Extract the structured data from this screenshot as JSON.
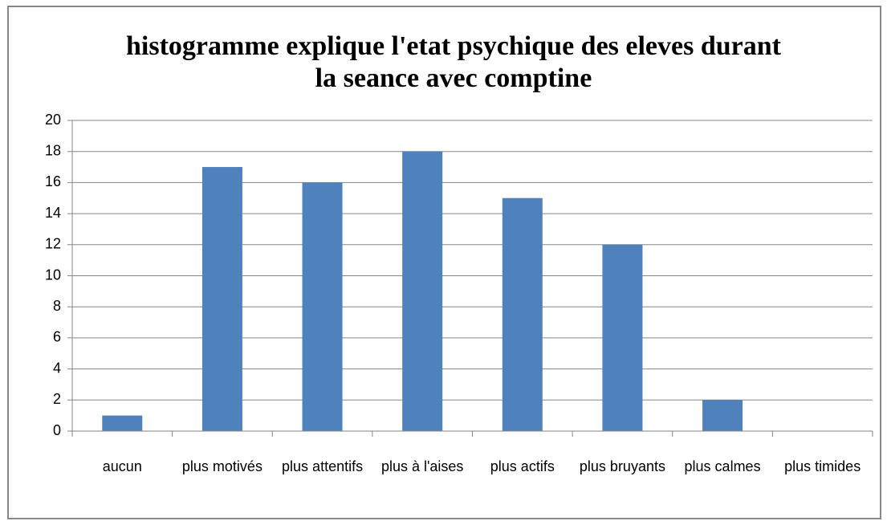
{
  "chart_data": {
    "type": "bar",
    "title": "histogramme explique l'etat psychique des eleves durant la seance avec comptine",
    "categories": [
      "aucun",
      "plus motivés",
      "plus attentifs",
      "plus à l'aises",
      "plus actifs",
      "plus bruyants",
      "plus calmes",
      "plus timides"
    ],
    "values": [
      1,
      17,
      16,
      18,
      15,
      12,
      2,
      0
    ],
    "color": "#4f81bd",
    "ylim": [
      0,
      20
    ],
    "yticks": [
      0,
      2,
      4,
      6,
      8,
      10,
      12,
      14,
      16,
      18,
      20
    ],
    "grid": true
  }
}
